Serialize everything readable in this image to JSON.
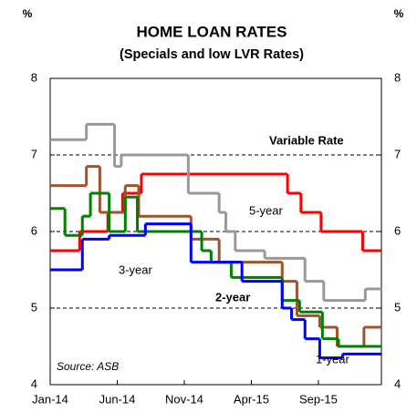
{
  "chart_data": {
    "type": "step",
    "title": "HOME LOAN RATES",
    "subtitle": "(Specials and low LVR Rates)",
    "y_unit": "%",
    "source": "Source:  ASB",
    "xlim": [
      0,
      24.7
    ],
    "xticks": [
      {
        "value": 0,
        "label": "Jan-14"
      },
      {
        "value": 5,
        "label": "Jun-14"
      },
      {
        "value": 10,
        "label": "Nov-14"
      },
      {
        "value": 15,
        "label": "Apr-15"
      },
      {
        "value": 20,
        "label": "Sep-15"
      }
    ],
    "ylim": [
      4,
      8
    ],
    "yticks": [
      4,
      5,
      6,
      7,
      8
    ],
    "grid": true,
    "series": [
      {
        "name": "Variable Rate",
        "color": "#ff0000",
        "x": [
          0,
          2.2,
          4.3,
          5.4,
          6.8,
          17.7,
          18.7,
          20.2,
          23.3
        ],
        "values": [
          5.75,
          6.0,
          6.25,
          6.5,
          6.75,
          6.5,
          6.25,
          6.0,
          5.75
        ]
      },
      {
        "name": "5-year",
        "color": "#999999",
        "x": [
          0,
          2.7,
          4.8,
          5.3,
          10.3,
          12.6,
          13.1,
          13.8,
          16.0,
          19.0,
          20.4,
          23.5
        ],
        "values": [
          7.2,
          7.4,
          6.85,
          7.0,
          6.5,
          6.25,
          6.0,
          5.75,
          5.65,
          5.35,
          5.1,
          5.25
        ]
      },
      {
        "name": "3-year",
        "color": "#a0522d",
        "x": [
          0,
          2.7,
          3.7,
          5.6,
          6.6,
          10.5,
          12.6,
          17.3,
          18.4,
          20.1,
          21.4,
          23.4
        ],
        "values": [
          6.6,
          6.85,
          6.25,
          6.6,
          6.2,
          5.9,
          5.6,
          5.35,
          4.9,
          4.75,
          4.5,
          4.75
        ]
      },
      {
        "name": "2-year",
        "color": "#008000",
        "x": [
          0,
          1.1,
          2.4,
          3.0,
          4.4,
          5.6,
          6.5,
          11.3,
          12.0,
          13.5,
          17.3,
          18.6,
          20.3,
          21.5
        ],
        "values": [
          6.3,
          5.95,
          6.2,
          6.5,
          6.0,
          6.45,
          6.0,
          5.75,
          5.6,
          5.4,
          5.1,
          4.95,
          4.6,
          4.5
        ]
      },
      {
        "name": "1-year",
        "color": "#0000ff",
        "x": [
          0,
          2.4,
          4.4,
          7.1,
          10.5,
          14.3,
          17.3,
          18.0,
          19.0,
          20.1,
          21.8
        ],
        "values": [
          5.5,
          5.9,
          5.95,
          6.1,
          5.6,
          5.35,
          5.0,
          4.85,
          4.6,
          4.35,
          4.4
        ]
      }
    ]
  }
}
